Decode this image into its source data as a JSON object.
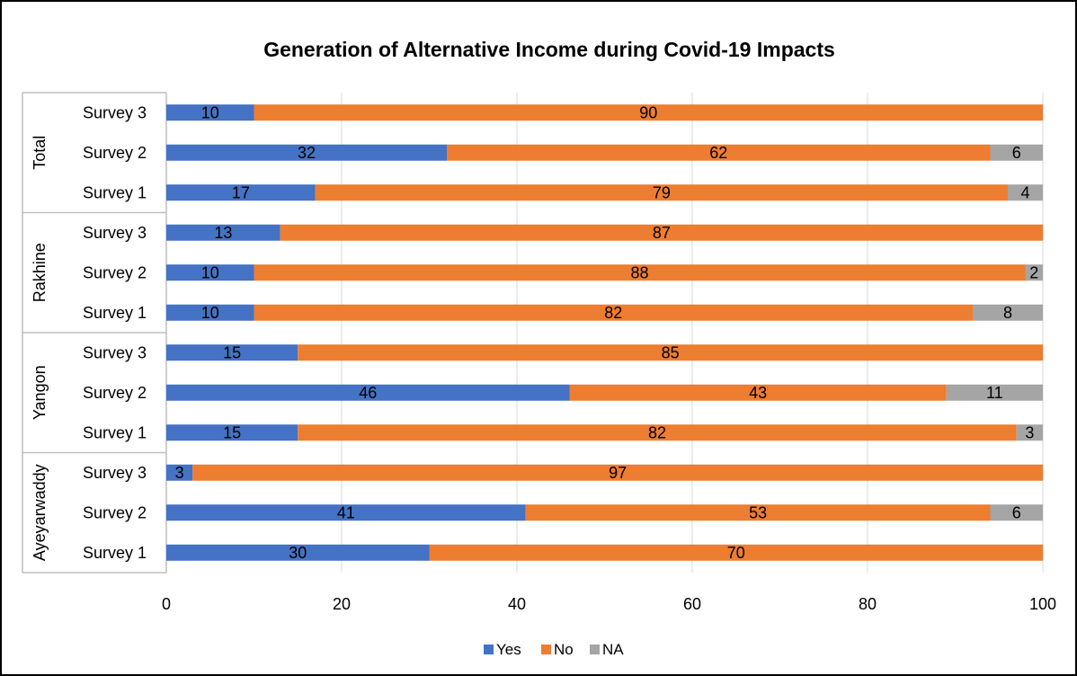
{
  "chart_data": {
    "type": "bar",
    "orientation": "horizontal",
    "stacked": true,
    "title": "Generation of Alternative Income during Covid-19 Impacts",
    "xlim": [
      0,
      100
    ],
    "x_ticks": [
      0,
      20,
      40,
      60,
      80,
      100
    ],
    "grid": true,
    "legend_position": "bottom",
    "legend": [
      "Yes",
      "No",
      "NA"
    ],
    "colors": {
      "Yes": "#4472C4",
      "No": "#ED7D31",
      "NA": "#A5A5A5"
    },
    "groups": [
      {
        "name": "Total",
        "rows": [
          {
            "label": "Survey 3",
            "yes": 10,
            "no": 90,
            "na": null
          },
          {
            "label": "Survey 2",
            "yes": 32,
            "no": 62,
            "na": 6
          },
          {
            "label": "Survey 1",
            "yes": 17,
            "no": 79,
            "na": 4
          }
        ]
      },
      {
        "name": "Rakhine",
        "rows": [
          {
            "label": "Survey 3",
            "yes": 13,
            "no": 87,
            "na": null
          },
          {
            "label": "Survey 2",
            "yes": 10,
            "no": 88,
            "na": 2
          },
          {
            "label": "Survey 1",
            "yes": 10,
            "no": 82,
            "na": 8
          }
        ]
      },
      {
        "name": "Yangon",
        "rows": [
          {
            "label": "Survey 3",
            "yes": 15,
            "no": 85,
            "na": null
          },
          {
            "label": "Survey 2",
            "yes": 46,
            "no": 43,
            "na": 11
          },
          {
            "label": "Survey 1",
            "yes": 15,
            "no": 82,
            "na": 3
          }
        ]
      },
      {
        "name": "Ayeyarwaddy",
        "rows": [
          {
            "label": "Survey 3",
            "yes": 3,
            "no": 97,
            "na": null
          },
          {
            "label": "Survey 2",
            "yes": 41,
            "no": 53,
            "na": 6
          },
          {
            "label": "Survey 1",
            "yes": 30,
            "no": 70,
            "na": null
          }
        ]
      }
    ]
  }
}
